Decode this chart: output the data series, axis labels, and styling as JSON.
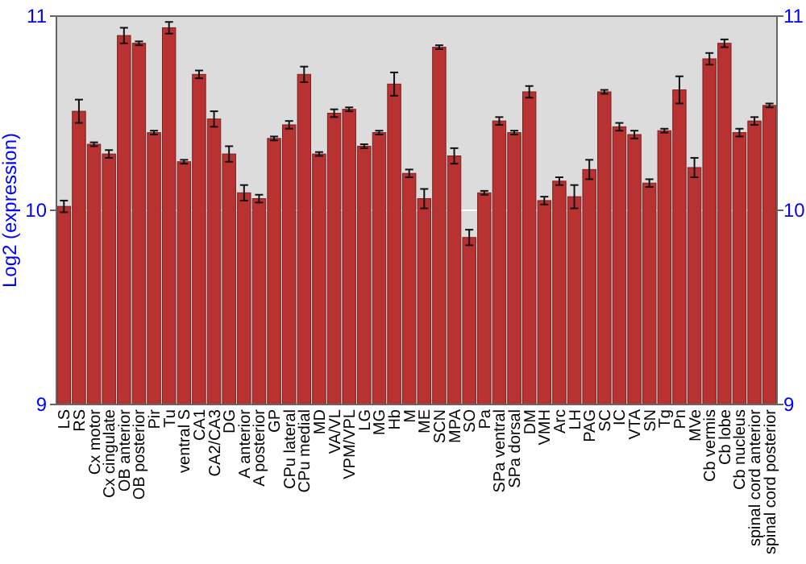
{
  "chart_data": {
    "type": "bar",
    "ylabel": "Log2 (expression)",
    "color": "#b83232",
    "categories": [
      "LS",
      "RS",
      "Cx motor",
      "Cx cingulate",
      "OB anterior",
      "OB posterior",
      "Pir",
      "Tu",
      "ventral S",
      "CA1",
      "CA2/CA3",
      "DG",
      "A anterior",
      "A posterior",
      "GP",
      "CPu lateral",
      "CPu medial",
      "MD",
      "VA/VL",
      "VPM/VPL",
      "LG",
      "MG",
      "Hb",
      "M",
      "ME",
      "SCN",
      "MPA",
      "SO",
      "Pa",
      "SPa ventral",
      "SPa dorsal",
      "DM",
      "VMH",
      "Arc",
      "LH",
      "PAG",
      "SC",
      "IC",
      "VTA",
      "SN",
      "Tg",
      "Pn",
      "MVe",
      "Cb vermis",
      "Cb lobe",
      "Cb nucleus",
      "spinal cord anterior",
      "spinal cord posterior"
    ],
    "values": [
      10.02,
      10.51,
      10.34,
      10.29,
      10.9,
      10.86,
      10.4,
      10.94,
      10.25,
      10.7,
      10.47,
      10.29,
      10.09,
      10.06,
      10.37,
      10.44,
      10.7,
      10.29,
      10.5,
      10.52,
      10.33,
      10.4,
      10.65,
      10.19,
      10.06,
      10.84,
      10.28,
      9.86,
      10.09,
      10.46,
      10.4,
      10.61,
      10.05,
      10.15,
      10.07,
      10.21,
      10.61,
      10.43,
      10.39,
      10.14,
      10.41,
      10.62,
      10.22,
      10.78,
      10.86,
      10.4,
      10.46,
      10.54
    ],
    "errors": [
      0.03,
      0.06,
      0.01,
      0.02,
      0.04,
      0.01,
      0.01,
      0.03,
      0.01,
      0.02,
      0.04,
      0.04,
      0.04,
      0.02,
      0.01,
      0.02,
      0.04,
      0.01,
      0.02,
      0.01,
      0.01,
      0.01,
      0.06,
      0.02,
      0.05,
      0.01,
      0.04,
      0.04,
      0.01,
      0.02,
      0.01,
      0.03,
      0.02,
      0.02,
      0.06,
      0.05,
      0.01,
      0.02,
      0.02,
      0.02,
      0.01,
      0.07,
      0.05,
      0.03,
      0.02,
      0.02,
      0.02,
      0.01
    ],
    "ylim": [
      9,
      11
    ],
    "yticks": [
      9,
      10,
      11
    ],
    "y2lim": [
      9,
      11
    ],
    "y2ticks": [
      9,
      10,
      11
    ],
    "grid": "y"
  }
}
